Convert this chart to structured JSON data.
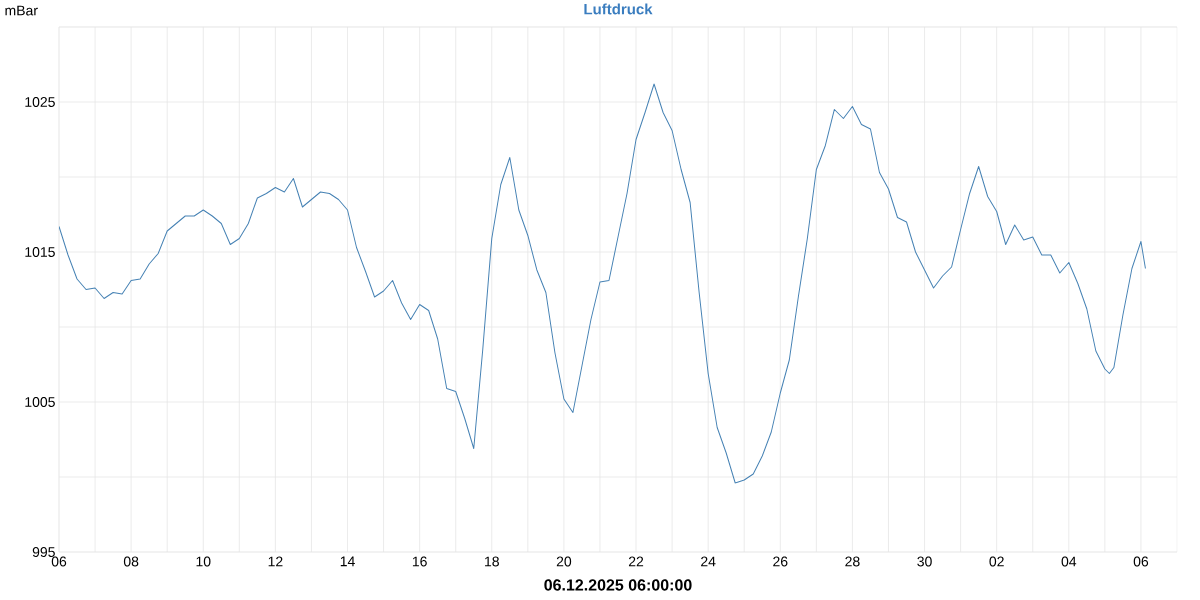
{
  "chart_data": {
    "type": "line",
    "title": "Luftdruck",
    "ylabel": "mBar",
    "xlabel": "06.12.2025 06:00:00",
    "color": "#4682b4",
    "grid": true,
    "xlim": [
      "2025-11-06T00:00",
      "2025-12-07T00:00"
    ],
    "ylim": [
      995,
      1030
    ],
    "yticks": [
      995,
      {
        "value": 1000,
        "label": null
      },
      1005,
      {
        "value": 1010,
        "label": null
      },
      1015,
      {
        "value": 1020,
        "label": null
      },
      1025,
      {
        "value": 1030,
        "label": null
      }
    ],
    "xticks": [
      {
        "value": "2025-11-06",
        "label": "06"
      },
      {
        "value": "2025-11-07",
        "label": null
      },
      {
        "value": "2025-11-08",
        "label": "08"
      },
      {
        "value": "2025-11-09",
        "label": null
      },
      {
        "value": "2025-11-10",
        "label": "10"
      },
      {
        "value": "2025-11-11",
        "label": null
      },
      {
        "value": "2025-11-12",
        "label": "12"
      },
      {
        "value": "2025-11-13",
        "label": null
      },
      {
        "value": "2025-11-14",
        "label": "14"
      },
      {
        "value": "2025-11-15",
        "label": null
      },
      {
        "value": "2025-11-16",
        "label": "16"
      },
      {
        "value": "2025-11-17",
        "label": null
      },
      {
        "value": "2025-11-18",
        "label": "18"
      },
      {
        "value": "2025-11-19",
        "label": null
      },
      {
        "value": "2025-11-20",
        "label": "20"
      },
      {
        "value": "2025-11-21",
        "label": null
      },
      {
        "value": "2025-11-22",
        "label": "22"
      },
      {
        "value": "2025-11-23",
        "label": null
      },
      {
        "value": "2025-11-24",
        "label": "24"
      },
      {
        "value": "2025-11-25",
        "label": null
      },
      {
        "value": "2025-11-26",
        "label": "26"
      },
      {
        "value": "2025-11-27",
        "label": null
      },
      {
        "value": "2025-11-28",
        "label": "28"
      },
      {
        "value": "2025-11-29",
        "label": null
      },
      {
        "value": "2025-11-30",
        "label": "30"
      },
      {
        "value": "2025-12-01",
        "label": null
      },
      {
        "value": "2025-12-02",
        "label": "02"
      },
      {
        "value": "2025-12-03",
        "label": null
      },
      {
        "value": "2025-12-04",
        "label": "04"
      },
      {
        "value": "2025-12-05",
        "label": null
      },
      {
        "value": "2025-12-06",
        "label": "06"
      }
    ],
    "x": [
      "2025-11-06T00:00",
      "2025-11-06T06:00",
      "2025-11-06T12:00",
      "2025-11-06T18:00",
      "2025-11-07T00:00",
      "2025-11-07T06:00",
      "2025-11-07T12:00",
      "2025-11-07T18:00",
      "2025-11-08T00:00",
      "2025-11-08T06:00",
      "2025-11-08T12:00",
      "2025-11-08T18:00",
      "2025-11-09T00:00",
      "2025-11-09T06:00",
      "2025-11-09T12:00",
      "2025-11-09T18:00",
      "2025-11-10T00:00",
      "2025-11-10T06:00",
      "2025-11-10T12:00",
      "2025-11-10T18:00",
      "2025-11-11T00:00",
      "2025-11-11T06:00",
      "2025-11-11T12:00",
      "2025-11-11T18:00",
      "2025-11-12T00:00",
      "2025-11-12T06:00",
      "2025-11-12T12:00",
      "2025-11-12T18:00",
      "2025-11-13T00:00",
      "2025-11-13T06:00",
      "2025-11-13T12:00",
      "2025-11-13T18:00",
      "2025-11-14T00:00",
      "2025-11-14T06:00",
      "2025-11-14T12:00",
      "2025-11-14T18:00",
      "2025-11-15T00:00",
      "2025-11-15T06:00",
      "2025-11-15T12:00",
      "2025-11-15T18:00",
      "2025-11-16T00:00",
      "2025-11-16T06:00",
      "2025-11-16T12:00",
      "2025-11-16T18:00",
      "2025-11-17T00:00",
      "2025-11-17T06:00",
      "2025-11-17T12:00",
      "2025-11-17T18:00",
      "2025-11-18T00:00",
      "2025-11-18T06:00",
      "2025-11-18T12:00",
      "2025-11-18T18:00",
      "2025-11-19T00:00",
      "2025-11-19T06:00",
      "2025-11-19T12:00",
      "2025-11-19T18:00",
      "2025-11-20T00:00",
      "2025-11-20T06:00",
      "2025-11-20T12:00",
      "2025-11-20T18:00",
      "2025-11-21T00:00",
      "2025-11-21T06:00",
      "2025-11-21T12:00",
      "2025-11-21T18:00",
      "2025-11-22T00:00",
      "2025-11-22T06:00",
      "2025-11-22T12:00",
      "2025-11-22T18:00",
      "2025-11-23T00:00",
      "2025-11-23T06:00",
      "2025-11-23T12:00",
      "2025-11-23T18:00",
      "2025-11-24T00:00",
      "2025-11-24T06:00",
      "2025-11-24T12:00",
      "2025-11-24T18:00",
      "2025-11-25T00:00",
      "2025-11-25T06:00",
      "2025-11-25T12:00",
      "2025-11-25T18:00",
      "2025-11-26T00:00",
      "2025-11-26T06:00",
      "2025-11-26T12:00",
      "2025-11-26T18:00",
      "2025-11-27T00:00",
      "2025-11-27T06:00",
      "2025-11-27T12:00",
      "2025-11-27T18:00",
      "2025-11-28T00:00",
      "2025-11-28T06:00",
      "2025-11-28T12:00",
      "2025-11-28T18:00",
      "2025-11-29T00:00",
      "2025-11-29T06:00",
      "2025-11-29T12:00",
      "2025-11-29T18:00",
      "2025-11-30T00:00",
      "2025-11-30T06:00",
      "2025-11-30T12:00",
      "2025-11-30T18:00",
      "2025-12-01T00:00",
      "2025-12-01T06:00",
      "2025-12-01T12:00",
      "2025-12-01T18:00",
      "2025-12-02T00:00",
      "2025-12-02T06:00",
      "2025-12-02T12:00",
      "2025-12-02T18:00",
      "2025-12-03T00:00",
      "2025-12-03T06:00",
      "2025-12-03T12:00",
      "2025-12-03T18:00",
      "2025-12-04T00:00",
      "2025-12-04T06:00",
      "2025-12-04T12:00",
      "2025-12-04T18:00",
      "2025-12-05T00:00",
      "2025-12-05T03:00",
      "2025-12-05T06:00",
      "2025-12-05T12:00",
      "2025-12-05T18:00",
      "2025-12-06T00:00",
      "2025-12-06T03:00"
    ],
    "values": [
      1016.7,
      1014.8,
      1013.2,
      1012.5,
      1012.6,
      1011.9,
      1012.3,
      1012.2,
      1013.1,
      1013.2,
      1014.2,
      1014.9,
      1016.4,
      1016.9,
      1017.4,
      1017.4,
      1017.8,
      1017.4,
      1016.9,
      1015.5,
      1015.9,
      1016.9,
      1018.6,
      1018.9,
      1019.3,
      1019.0,
      1019.9,
      1018.0,
      1018.5,
      1019.0,
      1018.9,
      1018.5,
      1017.8,
      1015.3,
      1013.7,
      1012.0,
      1012.4,
      1013.1,
      1011.6,
      1010.5,
      1011.5,
      1011.1,
      1009.2,
      1005.9,
      1005.7,
      1003.9,
      1001.9,
      1008.5,
      1015.9,
      1019.5,
      1021.3,
      1017.8,
      1016.1,
      1013.8,
      1012.3,
      1008.3,
      1005.2,
      1004.3,
      1007.4,
      1010.5,
      1013.0,
      1013.1,
      1016.0,
      1018.9,
      1022.5,
      1024.3,
      1026.2,
      1024.3,
      1023.1,
      1020.5,
      1018.3,
      1012.3,
      1006.9,
      1003.3,
      1001.6,
      999.6,
      999.8,
      1000.2,
      1001.4,
      1003.0,
      1005.6,
      1007.8,
      1012.0,
      1015.9,
      1020.5,
      1022.1,
      1024.5,
      1023.9,
      1024.7,
      1023.5,
      1023.2,
      1020.3,
      1019.2,
      1017.3,
      1017.0,
      1015.0,
      1013.8,
      1012.6,
      1013.4,
      1014.0,
      1016.5,
      1018.9,
      1020.7,
      1018.7,
      1017.7,
      1015.5,
      1016.8,
      1015.8,
      1016.0,
      1014.8,
      1014.8,
      1013.6,
      1014.3,
      1012.9,
      1011.2,
      1008.4,
      1007.2,
      1006.9,
      1007.3,
      1010.8,
      1013.9,
      1015.7,
      1013.9
    ]
  }
}
